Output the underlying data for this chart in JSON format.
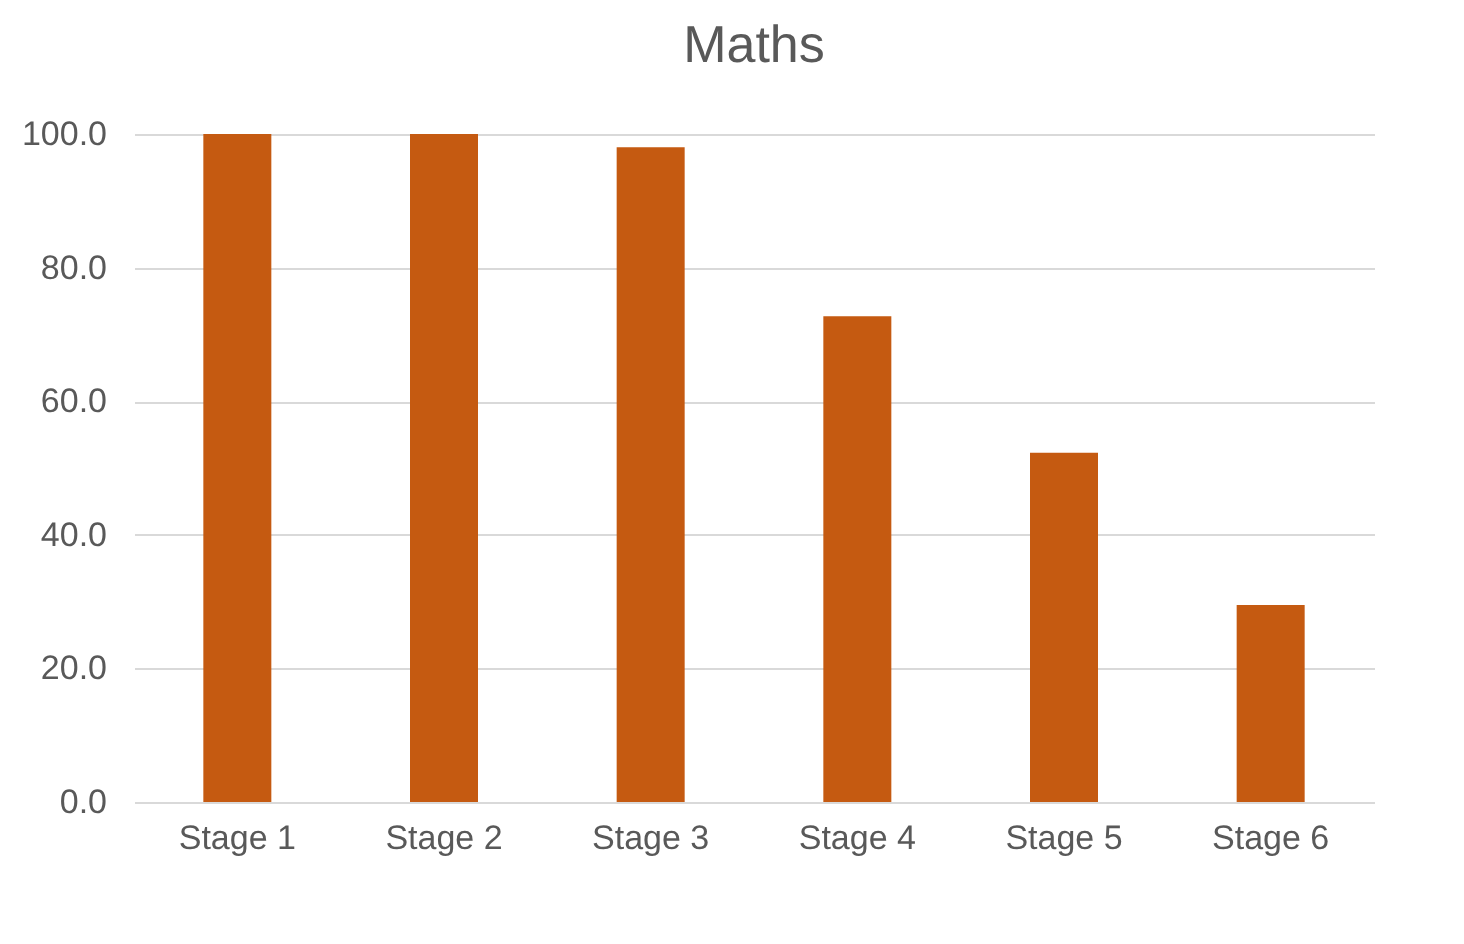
{
  "chart_data": {
    "type": "bar",
    "title": "Maths",
    "categories": [
      "Stage 1",
      "Stage 2",
      "Stage 3",
      "Stage 4",
      "Stage 5",
      "Stage 6"
    ],
    "values": [
      100,
      100,
      98,
      72.7,
      52.3,
      29.5
    ],
    "color": "#c55a11",
    "ylim": [
      0,
      100
    ],
    "yticks": [
      {
        "value": 0,
        "label": "0.0"
      },
      {
        "value": 20,
        "label": "20.0"
      },
      {
        "value": 40,
        "label": "40.0"
      },
      {
        "value": 60,
        "label": "60.0"
      },
      {
        "value": 80,
        "label": "80.0"
      },
      {
        "value": 100,
        "label": "100.0"
      }
    ],
    "grid": "y"
  }
}
